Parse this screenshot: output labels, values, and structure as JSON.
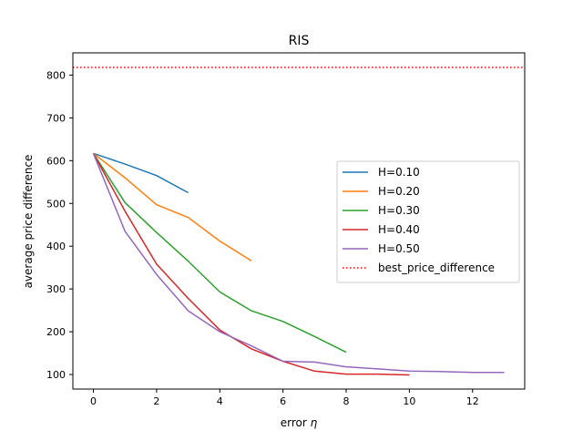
{
  "chart_data": {
    "type": "line",
    "title": "RIS",
    "xlabel": "error η",
    "xlabel_prefix": "error ",
    "xlabel_symbol": "η",
    "ylabel": "average price difference",
    "xlim": [
      -0.65,
      13.65
    ],
    "ylim": [
      66,
      852
    ],
    "xticks": [
      0,
      2,
      4,
      6,
      8,
      10,
      12
    ],
    "yticks": [
      100,
      200,
      300,
      400,
      500,
      600,
      700,
      800
    ],
    "grid": false,
    "legend_position": "center-right",
    "series": [
      {
        "name": "H=0.10",
        "color": "#1f77b4",
        "style": "solid",
        "x": [
          0,
          1,
          2,
          3
        ],
        "y": [
          617,
          592,
          565,
          525
        ]
      },
      {
        "name": "H=0.20",
        "color": "#ff7f0e",
        "style": "solid",
        "x": [
          0,
          1,
          2,
          3,
          4,
          5
        ],
        "y": [
          617,
          560,
          497,
          467,
          412,
          366
        ]
      },
      {
        "name": "H=0.30",
        "color": "#2ca02c",
        "style": "solid",
        "x": [
          0,
          1,
          2,
          3,
          4,
          5,
          6,
          7,
          8
        ],
        "y": [
          617,
          502,
          432,
          365,
          293,
          249,
          224,
          189,
          152
        ]
      },
      {
        "name": "H=0.40",
        "color": "#d62728",
        "style": "solid",
        "x": [
          0,
          1,
          2,
          3,
          4,
          5,
          6,
          7,
          8,
          9,
          10
        ],
        "y": [
          617,
          482,
          358,
          278,
          204,
          160,
          131,
          108,
          101,
          101,
          99
        ]
      },
      {
        "name": "H=0.50",
        "color": "#9467bd",
        "style": "solid",
        "x": [
          0,
          1,
          2,
          3,
          4,
          5,
          6,
          7,
          8,
          9,
          10,
          11,
          12,
          13
        ],
        "y": [
          617,
          435,
          334,
          249,
          200,
          167,
          131,
          129,
          118,
          113,
          108,
          107,
          105,
          105
        ]
      },
      {
        "name": "best_price_difference",
        "color": "#ff0000",
        "style": "dotted",
        "type": "hline",
        "y": 818
      }
    ]
  }
}
